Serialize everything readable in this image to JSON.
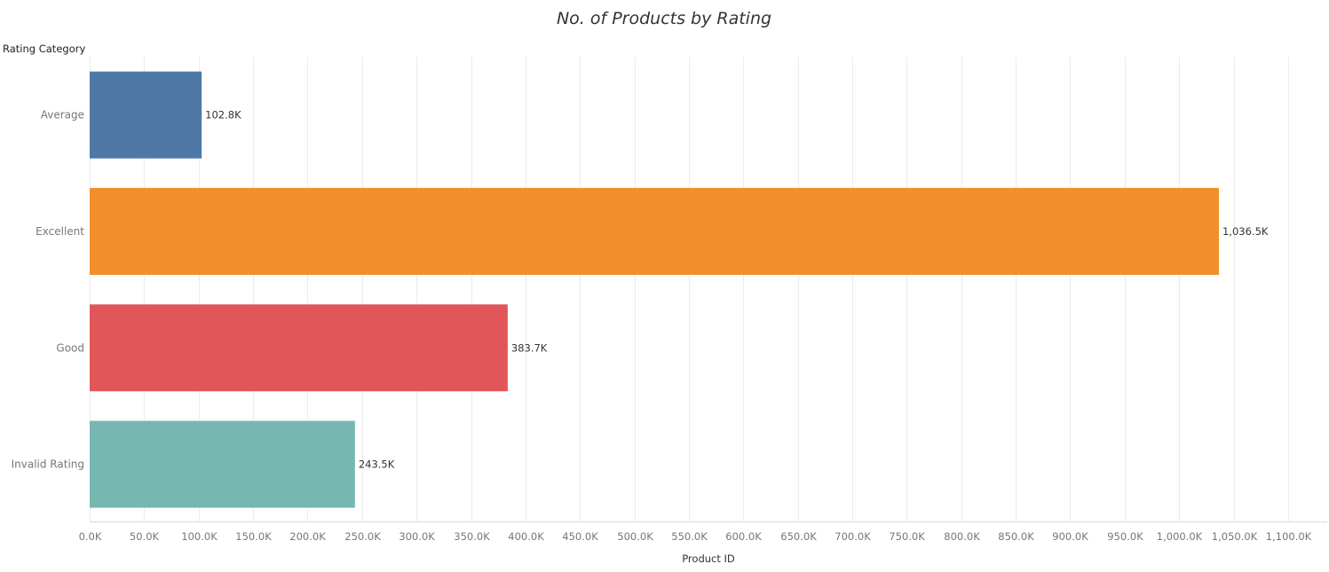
{
  "chart_data": {
    "type": "bar",
    "orientation": "horizontal",
    "title": "No. of Products by Rating",
    "row_header": "Rating Category",
    "xlabel": "Product ID",
    "xlim": [
      0,
      1100000
    ],
    "x_tick_values": [
      0,
      50000,
      100000,
      150000,
      200000,
      250000,
      300000,
      350000,
      400000,
      450000,
      500000,
      550000,
      600000,
      650000,
      700000,
      750000,
      800000,
      850000,
      900000,
      950000,
      1000000,
      1050000,
      1100000
    ],
    "x_tick_labels": [
      "0.0K",
      "50.0K",
      "100.0K",
      "150.0K",
      "200.0K",
      "250.0K",
      "300.0K",
      "350.0K",
      "400.0K",
      "450.0K",
      "500.0K",
      "550.0K",
      "600.0K",
      "650.0K",
      "700.0K",
      "750.0K",
      "800.0K",
      "850.0K",
      "900.0K",
      "950.0K",
      "1,000.0K",
      "1,050.0K",
      "1,100.0K"
    ],
    "grid": true,
    "categories": [
      "Average",
      "Excellent",
      "Good",
      "Invalid Rating"
    ],
    "values": [
      102800,
      1036500,
      383700,
      243500
    ],
    "value_labels": [
      "102.8K",
      "1,036.5K",
      "383.7K",
      "243.5K"
    ],
    "colors": [
      "#4e79a7",
      "#f28e2b",
      "#e15759",
      "#76b7b2"
    ]
  }
}
